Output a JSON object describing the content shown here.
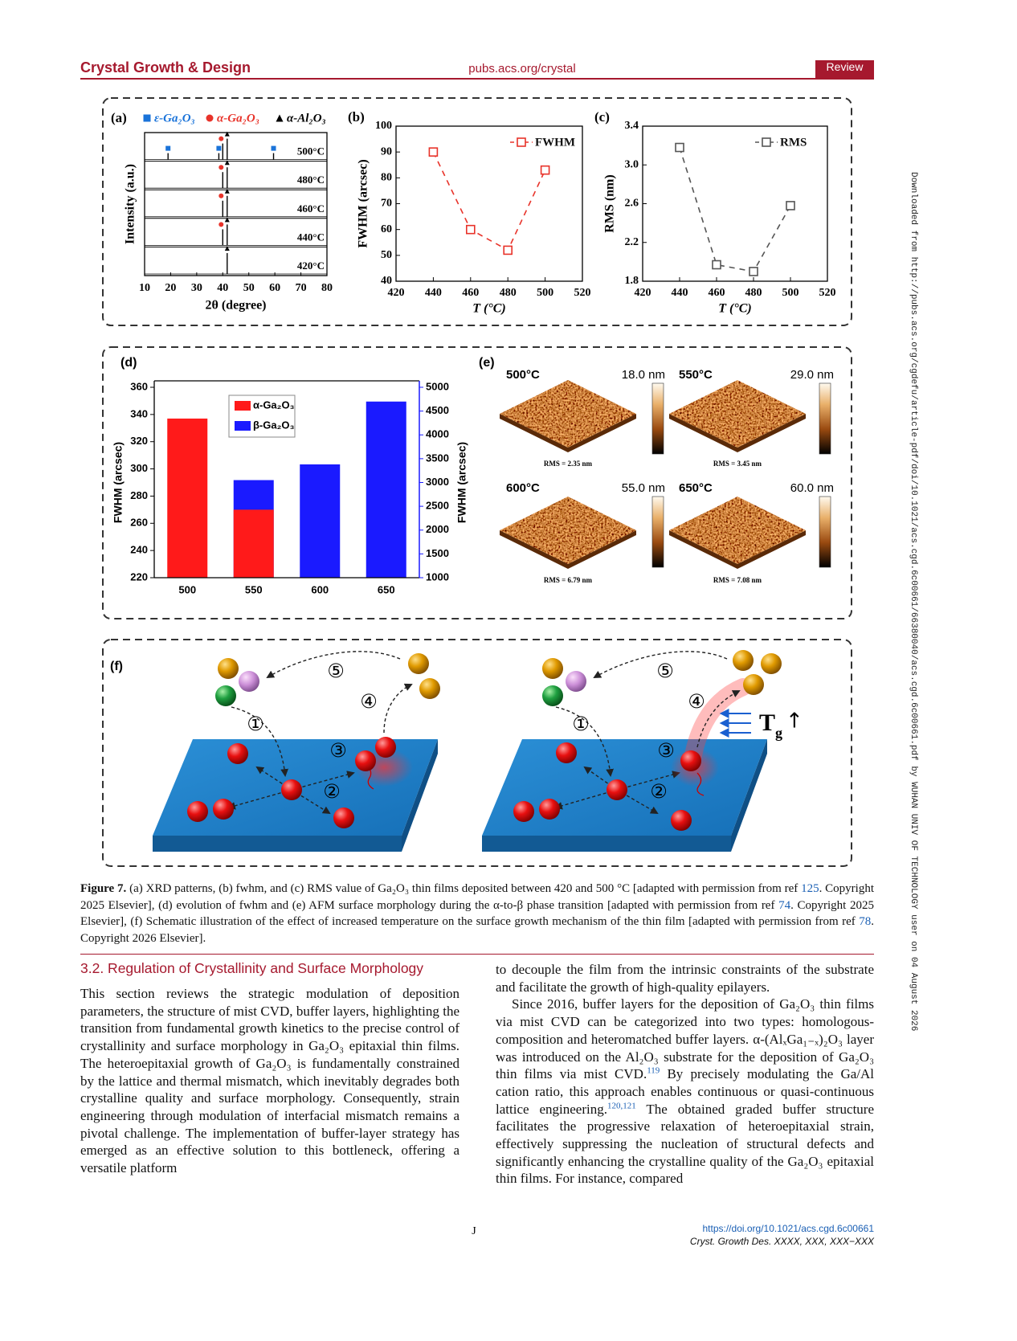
{
  "header": {
    "journal": "Crystal Growth & Design",
    "url": "pubs.acs.org/crystal",
    "article_type": "Review"
  },
  "chart_data": [
    {
      "type": "xrd",
      "panel": "(a)",
      "x_label": "2θ (degree)",
      "y_label": "Intensity (a.u.)",
      "xlim": [
        10,
        80
      ],
      "xticks": [
        10,
        20,
        30,
        40,
        50,
        60,
        70,
        80
      ],
      "patterns": [
        "500°C",
        "480°C",
        "460°C",
        "440°C",
        "420°C"
      ],
      "series": [
        {
          "name": "ε-Ga₂O₃",
          "color": "#1a73d9",
          "marker": "square",
          "x": [
            [
              19,
              38.5,
              59.5
            ],
            [],
            [],
            [],
            []
          ]
        },
        {
          "name": "α-Ga₂O₃",
          "color": "#e8332a",
          "marker": "circle",
          "x": [
            [
              40
            ],
            [
              40
            ],
            [
              40
            ],
            [
              40
            ],
            []
          ]
        },
        {
          "name": "α-Al₂O₃",
          "color": "#000000",
          "marker": "triangle",
          "x": [
            [
              41.7
            ],
            [
              41.7
            ],
            [
              41.7
            ],
            [
              41.7
            ],
            [
              41.7
            ]
          ]
        }
      ]
    },
    {
      "type": "line",
      "panel": "(b)",
      "x_label": "T (°C)",
      "y_label": "FWHM (arcsec)",
      "x": [
        440,
        460,
        480,
        500
      ],
      "series": [
        {
          "name": "FWHM",
          "color": "#e8332a",
          "values": [
            90,
            60,
            52,
            83
          ]
        }
      ],
      "xlim": [
        420,
        520
      ],
      "xticks": [
        420,
        440,
        460,
        480,
        500,
        520
      ],
      "ylim": [
        40,
        100
      ],
      "yticks": [
        40,
        50,
        60,
        70,
        80,
        90,
        100
      ],
      "legend": "upper right"
    },
    {
      "type": "line",
      "panel": "(c)",
      "x_label": "T (°C)",
      "y_label": "RMS (nm)",
      "x": [
        440,
        460,
        480,
        500
      ],
      "series": [
        {
          "name": "RMS",
          "color": "#555555",
          "values": [
            3.18,
            1.97,
            1.9,
            2.58
          ]
        }
      ],
      "xlim": [
        420,
        520
      ],
      "xticks": [
        420,
        440,
        460,
        480,
        500,
        520
      ],
      "ylim": [
        1.8,
        3.4
      ],
      "yticks": [
        1.8,
        2.2,
        2.6,
        {
          "value": 3,
          "label": "3.0"
        },
        3.4
      ],
      "legend": "upper right"
    },
    {
      "type": "bar",
      "panel": "(d)",
      "categories": [
        "500",
        "550",
        "600",
        "650"
      ],
      "y_label": "FWHM (arcsec)",
      "y2_label": "FWHM (arcsec)",
      "series": [
        {
          "name": "α-Ga₂O₃",
          "color": "#ff1a1a",
          "values": [
            337,
            270,
            null,
            null
          ]
        },
        {
          "name": "β-Ga₂O₃",
          "color": "#1a1aff",
          "axis": "y2",
          "values": [
            null,
            3050,
            3380,
            4700
          ]
        }
      ],
      "ylim": [
        220,
        360
      ],
      "yticks": [
        220,
        240,
        260,
        280,
        300,
        320,
        340,
        360
      ],
      "y2lim": [
        1000,
        5000
      ],
      "y2ticks": [
        1000,
        1500,
        2000,
        2500,
        3000,
        3500,
        4000,
        4500,
        5000
      ],
      "legend": "upper left"
    }
  ],
  "figure": {
    "afm": {
      "panel": "(e)",
      "images": [
        {
          "temperature": "500°C",
          "scale": "18.0 nm",
          "rms": "RMS = 2.35 nm"
        },
        {
          "temperature": "550°C",
          "scale": "29.0 nm",
          "rms": "RMS = 3.45 nm"
        },
        {
          "temperature": "600°C",
          "scale": "55.0 nm",
          "rms": "RMS = 6.79 nm"
        },
        {
          "temperature": "650°C",
          "scale": "60.0 nm",
          "rms": "RMS = 7.08 nm"
        }
      ]
    },
    "schematic": {
      "panel": "(f)",
      "left_steps": [
        "①",
        "②",
        "③",
        "④",
        "⑤"
      ],
      "right_steps": [
        "①",
        "②",
        "③",
        "④",
        "⑤"
      ],
      "temperature_label": {
        "base": "T",
        "subscript": "g",
        "symbol": "↑"
      }
    },
    "caption": {
      "label": "Figure 7.",
      "segments": [
        "(a) XRD patterns, (b) fwhm, and (c) RMS value of Ga₂O₃ thin films deposited between 420 and 500 °C [adapted with permission from ref ",
        "125",
        ". Copyright 2025 Elsevier], (d) evolution of fwhm and (e) AFM surface morphology during the α-to-β phase transition [adapted with permission from ref ",
        "74",
        ". Copyright 2025 Elsevier], (f) Schematic illustration of the effect of increased temperature on the surface growth mechanism of the thin film [adapted with permission from ref ",
        "78",
        ". Copyright 2026 Elsevier]."
      ]
    }
  },
  "section": {
    "heading": "3.2. Regulation of Crystallinity and Surface Morphology",
    "left_paragraph": "This section reviews the strategic modulation of deposition parameters, the structure of mist CVD, buffer layers, highlighting the transition from fundamental growth kinetics to the precise control of crystallinity and surface morphology in Ga₂O₃ epitaxial thin films. The heteroepitaxial growth of Ga₂O₃ is fundamentally constrained by the lattice and thermal mismatch, which inevitably degrades both crystalline quality and surface morphology. Consequently, strain engineering through modulation of interfacial mismatch remains a pivotal challenge. The implementation of buffer-layer strategy has emerged as an effective solution to this bottleneck, offering a versatile platform",
    "right_paragraph_1": "to decouple the film from the intrinsic constraints of the substrate and facilitate the growth of high-quality epilayers.",
    "right_paragraph_2": [
      "Since 2016, buffer layers for the deposition of Ga₂O₃ thin films via mist CVD can be categorized into two types: homologous-composition and heteromatched buffer layers. α-(AlₓGa₁₋ₓ)₂O₃ layer was introduced on the Al₂O₃ substrate for the deposition of Ga₂O₃ thin films via mist CVD.",
      "119",
      " By precisely modulating the Ga/Al cation ratio, this approach enables continuous or quasi-continuous lattice engineering.",
      "120,121",
      " The obtained graded buffer structure facilitates the progressive relaxation of heteroepitaxial strain, effectively suppressing the nucleation of structural defects and significantly enhancing the crystalline quality of the Ga₂O₃ epitaxial thin films. For instance, compared"
    ]
  },
  "footer": {
    "page": "J",
    "doi": "https://doi.org/10.1021/acs.cgd.6c00661",
    "citation": "Cryst. Growth Des. XXXX, XXX, XXX−XXX"
  },
  "side_note": "Downloaded from http://pubs.acs.org/cgdefu/article-pdf/doi/10.1021/acs.cgd.6c00661/66380040/acs.cgd.6c00661.pdf by WUHAN UNIV OF TECHNOLOGY user on 04 August 2026"
}
